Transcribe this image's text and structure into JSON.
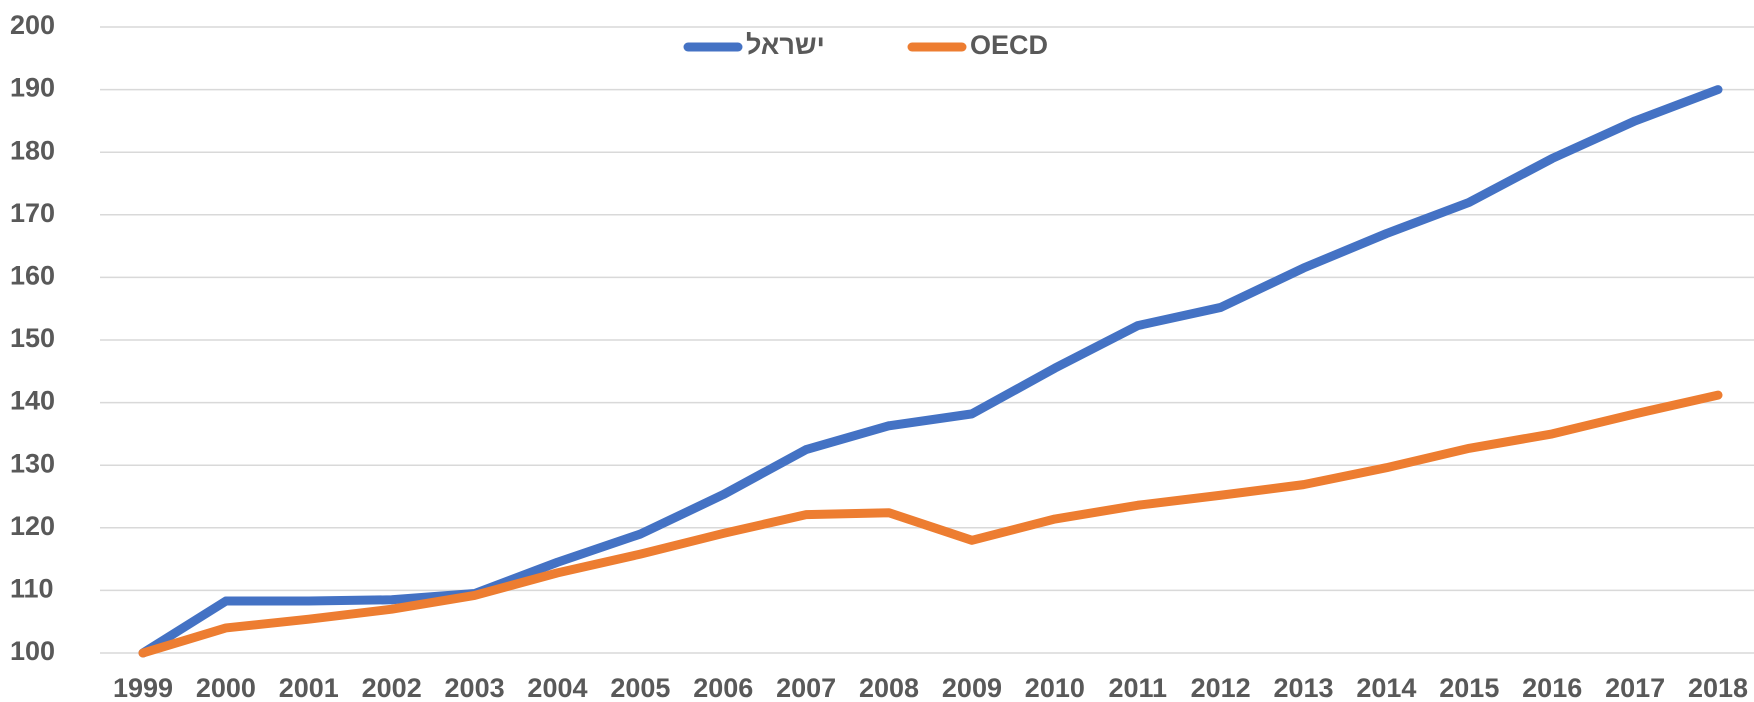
{
  "chart_data": {
    "type": "line",
    "categories": [
      "1999",
      "2000",
      "2001",
      "2002",
      "2003",
      "2004",
      "2005",
      "2006",
      "2007",
      "2008",
      "2009",
      "2010",
      "2011",
      "2012",
      "2013",
      "2014",
      "2015",
      "2016",
      "2017",
      "2018"
    ],
    "series": [
      {
        "name": "ישראל",
        "color": "#4472c4",
        "values": [
          100,
          108.3,
          108.3,
          108.5,
          109.5,
          114.5,
          119,
          125.3,
          132.5,
          136.3,
          138.2,
          145.5,
          152.3,
          155.2,
          161.5,
          167,
          172,
          179,
          185,
          190
        ]
      },
      {
        "name": "OECD",
        "color": "#ed7d31",
        "values": [
          100,
          104,
          105.4,
          107,
          109.2,
          112.8,
          115.8,
          119.1,
          122.1,
          122.4,
          118,
          121.4,
          123.6,
          125.2,
          126.9,
          129.6,
          132.7,
          135,
          138.2,
          141.2
        ]
      }
    ],
    "ylim": [
      100,
      200
    ],
    "yticks": [
      100,
      110,
      120,
      130,
      140,
      150,
      160,
      170,
      180,
      190,
      200
    ],
    "grid": true,
    "legend": "top"
  }
}
